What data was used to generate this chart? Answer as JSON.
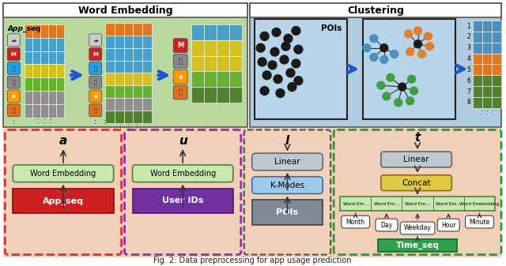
{
  "title": "Fig. 2: Data preprocessing for app usage prediction",
  "top_left_title": "Word Embedding",
  "top_right_title": "Clustering",
  "bg_top_left": "#b8d8a0",
  "bg_top_right": "#b0cce0",
  "bg_bottom": "#f0d0b8",
  "top_left_header_bg": "#ffffff",
  "top_right_header_bg": "#ffffff",
  "border_red": "#e03030",
  "border_purple": "#9030b0",
  "border_green": "#20a030",
  "poi_dot_color": "#1a1a1a",
  "cluster_blue": "#4a90c0",
  "cluster_orange": "#e08030",
  "cluster_green": "#40a040",
  "arrow_blue": "#2255cc",
  "mat_orange": "#e07820",
  "mat_blue": "#4a9fca",
  "mat_yellow": "#d4c020",
  "mat_green": "#68b030",
  "mat_gray": "#909090",
  "mat_darkgreen": "#508030",
  "res_blue": "#4a90c0",
  "res_orange": "#e07820",
  "res_green": "#508030",
  "box_we_fill": "#c8e8b0",
  "box_we_edge": "#508040",
  "box_linear_fill": "#c0c8d0",
  "box_linear_edge": "#606878",
  "box_kmodes_fill": "#a0c8e8",
  "box_kmodes_edge": "#4070a0",
  "box_red": "#cc2020",
  "box_purple": "#7030a0",
  "box_gray_poi": "#808898",
  "box_yellow_concat": "#e0c840",
  "box_green_timeseq": "#30a050",
  "text_dark": "#1a1a1a"
}
